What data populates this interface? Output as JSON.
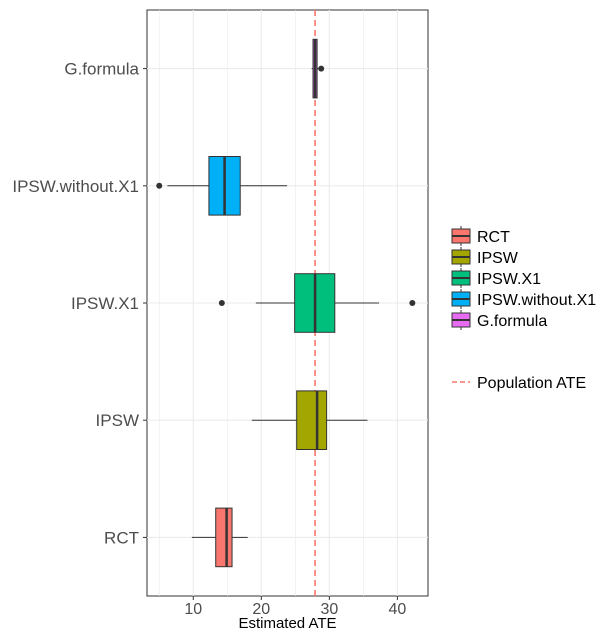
{
  "chart_data": {
    "type": "box",
    "orientation": "horizontal",
    "xlabel": "Estimated ATE",
    "ylabel": "",
    "xlim": [
      3.2,
      44.5
    ],
    "x_ticks": [
      10,
      20,
      30,
      40
    ],
    "categories": [
      "G.formula",
      "IPSW.without.X1",
      "IPSW.X1",
      "IPSW",
      "RCT"
    ],
    "boxes": [
      {
        "name": "G.formula",
        "color": "#E76BF3",
        "whisker_low": 27.4,
        "q1": 27.6,
        "median": 27.9,
        "q3": 28.2,
        "whisker_high": 28.4,
        "outliers": [
          28.8
        ]
      },
      {
        "name": "IPSW.without.X1",
        "color": "#00B0F6",
        "whisker_low": 6.2,
        "q1": 12.3,
        "median": 14.6,
        "q3": 16.9,
        "whisker_high": 23.8,
        "outliers": [
          5.0
        ]
      },
      {
        "name": "IPSW.X1",
        "color": "#00BF7D",
        "whisker_low": 19.2,
        "q1": 24.9,
        "median": 27.9,
        "q3": 30.8,
        "whisker_high": 37.3,
        "outliers": [
          14.2,
          42.2
        ]
      },
      {
        "name": "IPSW",
        "color": "#A3A500",
        "whisker_low": 18.6,
        "q1": 25.2,
        "median": 28.2,
        "q3": 29.6,
        "whisker_high": 35.6,
        "outliers": []
      },
      {
        "name": "RCT",
        "color": "#F8766D",
        "whisker_low": 9.8,
        "q1": 13.3,
        "median": 14.9,
        "q3": 15.7,
        "whisker_high": 18.0,
        "outliers": []
      }
    ],
    "reference_line": {
      "value": 27.9,
      "label": "Population ATE",
      "color": "#F8766D",
      "style": "dashed"
    },
    "legend": {
      "position": "right",
      "items": [
        {
          "label": "RCT",
          "color": "#F8766D"
        },
        {
          "label": "IPSW",
          "color": "#A3A500"
        },
        {
          "label": "IPSW.X1",
          "color": "#00BF7D"
        },
        {
          "label": "IPSW.without.X1",
          "color": "#00B0F6"
        },
        {
          "label": "G.formula",
          "color": "#E76BF3"
        }
      ]
    },
    "grid": true
  }
}
